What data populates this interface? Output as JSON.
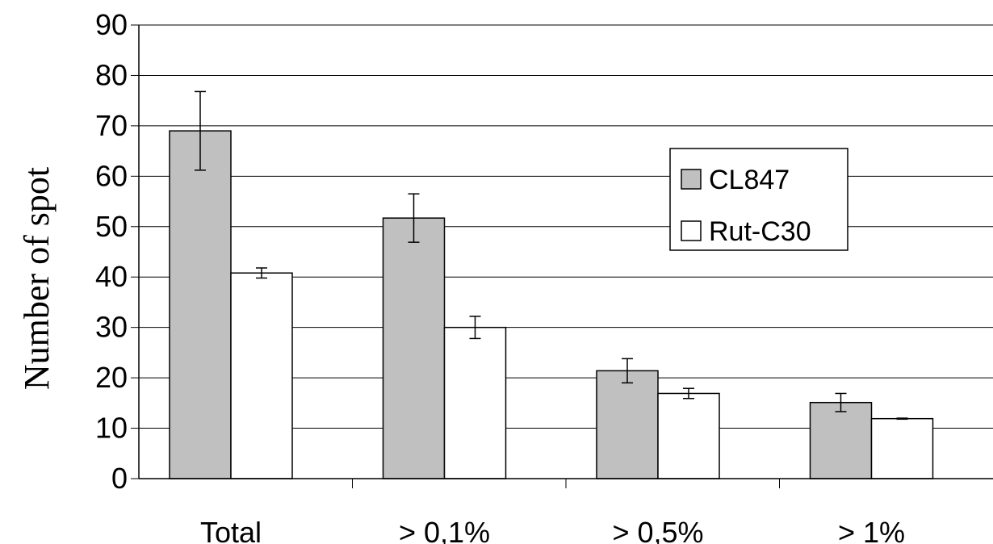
{
  "chart_data": {
    "type": "bar",
    "title": "",
    "xlabel": "",
    "ylabel": "Number of spot",
    "ylim": [
      0,
      90
    ],
    "yticks": [
      0,
      10,
      20,
      30,
      40,
      50,
      60,
      70,
      80,
      90
    ],
    "grid": "horizontal",
    "legend_position": "right",
    "categories": [
      "Total",
      "> 0,1%",
      "> 0,5%",
      "> 1%"
    ],
    "series": [
      {
        "name": "CL847",
        "color": "#c0c0c0",
        "values": [
          69,
          51.7,
          21.4,
          15.1
        ],
        "errors": [
          7.8,
          4.8,
          2.4,
          1.8
        ]
      },
      {
        "name": "Rut-C30",
        "color": "#ffffff",
        "values": [
          40.8,
          30,
          16.9,
          11.9
        ],
        "errors": [
          1.0,
          2.2,
          1.0,
          0.1
        ]
      }
    ]
  }
}
